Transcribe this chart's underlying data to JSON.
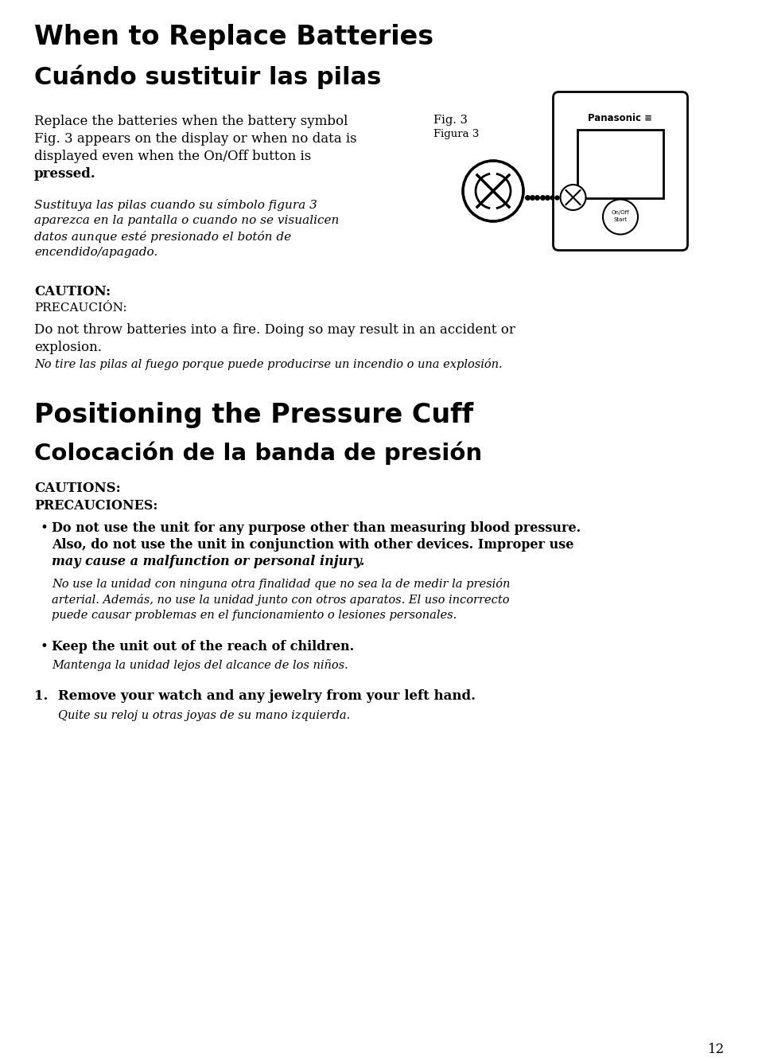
{
  "bg_color": "#ffffff",
  "title1_en": "When to Replace Batteries",
  "title1_es": "Cuándo sustituir las pilas",
  "fig_label_en": "Fig. 3",
  "fig_label_es": "Figura 3",
  "caution_en": "CAUTION:",
  "caution_es": "PRECAUCIÓN:",
  "caution_text_en_1": "Do not throw batteries into a fire. Doing so may result in an accident or",
  "caution_text_en_2": "explosion.",
  "caution_text_es": "No tire las pilas al fuego porque puede producirse un incendio o una explosión.",
  "title2_en": "Positioning the Pressure Cuff",
  "title2_es": "Colocación de la banda de presión",
  "cautions2_en": "CAUTIONS:",
  "cautions2_es": "PRECAUCIONES:",
  "bullet1_en_lines": [
    "Do not use the unit for any purpose other than measuring blood pressure.",
    "Also, do not use the unit in conjunction with other devices. Improper use",
    "may cause a malfunction or personal injury."
  ],
  "bullet1_es_lines": [
    "No use la unidad con ninguna otra finalidad que no sea la de medir la presión",
    "arterial. Además, no use la unidad junto con otros aparatos. El uso incorrecto",
    "puede causar problemas en el funcionamiento o lesiones personales."
  ],
  "bullet2_en": "Keep the unit out of the reach of children.",
  "bullet2_es": "Mantenga la unidad lejos del alcance de los niños.",
  "numbered1_en": "Remove your watch and any jewelry from your left hand.",
  "numbered1_es": "Quite su reloj u otras joyas de su mano izquierda.",
  "page_number": "12",
  "para1_en_lines": [
    "Replace the batteries when the battery symbol",
    "Fig. 3 appears on the display or when no data is",
    "displayed even when the On/Off button is",
    "pressed."
  ],
  "para1_es_lines": [
    "Sustituya las pilas cuando su símbolo figura 3",
    "aparezca en la pantalla o cuando no se visualicen",
    "datos aunque esté presionado el botón de",
    "encendido/apagado."
  ]
}
